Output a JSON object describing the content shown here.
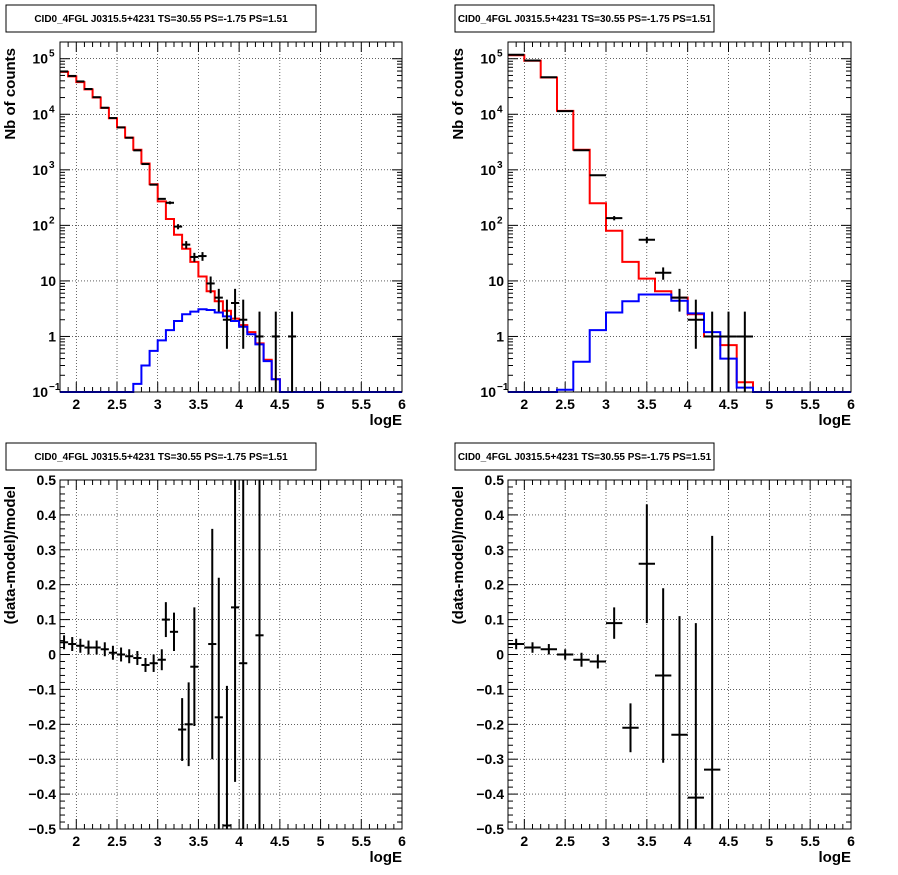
{
  "chart_data": [
    {
      "type": "step",
      "title": "CID0_4FGL J0315.5+4231 TS=30.55 PS=-1.75 PS=1.51",
      "xlabel": "logE",
      "ylabel": "Nb of counts",
      "xlim": [
        1.8,
        6
      ],
      "ylim": [
        0.1,
        200000
      ],
      "yscale": "log",
      "grid": true,
      "xticks": [
        "2",
        "2.5",
        "3",
        "3.5",
        "4",
        "4.5",
        "5",
        "5.5",
        "6"
      ],
      "yticks": [
        {
          "v": 0.1,
          "base": "10",
          "exp": "−1"
        },
        {
          "v": 1,
          "base": "1",
          "exp": ""
        },
        {
          "v": 10,
          "base": "10",
          "exp": ""
        },
        {
          "v": 100,
          "base": "10",
          "exp": "2"
        },
        {
          "v": 1000,
          "base": "10",
          "exp": "3"
        },
        {
          "v": 10000,
          "base": "10",
          "exp": "4"
        },
        {
          "v": 100000,
          "base": "10",
          "exp": "5"
        }
      ],
      "bin_edges": [
        1.8,
        1.9,
        2.0,
        2.1,
        2.2,
        2.3,
        2.4,
        2.5,
        2.6,
        2.7,
        2.8,
        2.9,
        3.0,
        3.1,
        3.2,
        3.3,
        3.4,
        3.5,
        3.6,
        3.7,
        3.8,
        3.9,
        4.0,
        4.1,
        4.2,
        4.3,
        4.4,
        4.5,
        4.6,
        4.7,
        4.8,
        4.9,
        5.0,
        5.1,
        5.2,
        5.3,
        5.4,
        5.5,
        5.6,
        5.7,
        5.8,
        5.9,
        6.0
      ],
      "series": [
        {
          "color": "#ff0000",
          "values": [
            58000,
            48000,
            38000,
            28000,
            20000,
            13000,
            8500,
            5800,
            3800,
            2300,
            1300,
            550,
            270,
            130,
            68,
            38,
            22,
            12,
            6.5,
            4.3,
            2.9,
            2.1,
            1.6,
            1.2,
            0.75,
            0.38,
            0.17,
            0.1,
            0.1,
            0.1,
            0.1,
            0.1,
            0.1,
            0.1,
            0.1,
            0.1,
            0.1,
            0.1,
            0.1,
            0.1,
            0.1,
            0.1
          ]
        },
        {
          "color": "#0000ff",
          "values": [
            0.1,
            0.1,
            0.1,
            0.1,
            0.1,
            0.1,
            0.1,
            0.1,
            0.1,
            0.14,
            0.3,
            0.55,
            0.85,
            1.3,
            1.9,
            2.5,
            2.8,
            3.1,
            3.0,
            2.7,
            2.3,
            1.9,
            1.5,
            1.1,
            0.72,
            0.36,
            0.17,
            0.1,
            0.1,
            0.1,
            0.1,
            0.1,
            0.1,
            0.1,
            0.1,
            0.1,
            0.1,
            0.1,
            0.1,
            0.1,
            0.1,
            0.1
          ]
        }
      ],
      "points": [
        {
          "x": 1.85,
          "y": 59000,
          "dx": 0.05,
          "lo": 0,
          "hi": 0
        },
        {
          "x": 1.95,
          "y": 49000,
          "dx": 0.05,
          "lo": 0,
          "hi": 0
        },
        {
          "x": 2.05,
          "y": 39000,
          "dx": 0.05,
          "lo": 0,
          "hi": 0
        },
        {
          "x": 2.15,
          "y": 28500,
          "dx": 0.05,
          "lo": 0,
          "hi": 0
        },
        {
          "x": 2.25,
          "y": 20300,
          "dx": 0.05,
          "lo": 0,
          "hi": 0
        },
        {
          "x": 2.35,
          "y": 13100,
          "dx": 0.05,
          "lo": 0,
          "hi": 0
        },
        {
          "x": 2.45,
          "y": 8550,
          "dx": 0.05,
          "lo": 0,
          "hi": 0
        },
        {
          "x": 2.55,
          "y": 5800,
          "dx": 0.05,
          "lo": 0,
          "hi": 0
        },
        {
          "x": 2.65,
          "y": 3780,
          "dx": 0.05,
          "lo": 0,
          "hi": 0
        },
        {
          "x": 2.75,
          "y": 2240,
          "dx": 0.05,
          "lo": 0,
          "hi": 0
        },
        {
          "x": 2.85,
          "y": 1270,
          "dx": 0.05,
          "lo": 0,
          "hi": 0
        },
        {
          "x": 2.95,
          "y": 540,
          "dx": 0.05,
          "lo": 0,
          "hi": 0
        },
        {
          "x": 3.05,
          "y": 300,
          "dx": 0.05,
          "lo": 0,
          "hi": 0
        },
        {
          "x": 3.15,
          "y": 255,
          "dx": 0.05,
          "lo": 15,
          "hi": 16
        },
        {
          "x": 3.25,
          "y": 95,
          "dx": 0.05,
          "lo": 10,
          "hi": 10
        },
        {
          "x": 3.35,
          "y": 45,
          "dx": 0.05,
          "lo": 7,
          "hi": 7
        },
        {
          "x": 3.45,
          "y": 27,
          "dx": 0.05,
          "lo": 5,
          "hi": 5
        },
        {
          "x": 3.55,
          "y": 28,
          "dx": 0.05,
          "lo": 5,
          "hi": 5
        },
        {
          "x": 3.65,
          "y": 9,
          "dx": 0.05,
          "lo": 3,
          "hi": 3
        },
        {
          "x": 3.75,
          "y": 5,
          "dx": 0.05,
          "lo": 2.2,
          "hi": 2.2
        },
        {
          "x": 3.85,
          "y": 2,
          "dx": 0.05,
          "lo": 1.4,
          "hi": 2.6
        },
        {
          "x": 3.95,
          "y": 4,
          "dx": 0.05,
          "lo": 2,
          "hi": 3.2
        },
        {
          "x": 4.05,
          "y": 2,
          "dx": 0.05,
          "lo": 1.4,
          "hi": 2.6
        },
        {
          "x": 4.25,
          "y": 1,
          "dx": 0.05,
          "lo": 0.9,
          "hi": 1.8
        },
        {
          "x": 4.45,
          "y": 1,
          "dx": 0.05,
          "lo": 0.9,
          "hi": 1.8
        },
        {
          "x": 4.65,
          "y": 1,
          "dx": 0.05,
          "lo": 0.9,
          "hi": 1.8
        }
      ]
    },
    {
      "type": "step",
      "title": "CID0_4FGL J0315.5+4231 TS=30.55 PS=-1.75 PS=1.51",
      "xlabel": "logE",
      "ylabel": "Nb of counts",
      "xlim": [
        1.8,
        6
      ],
      "ylim": [
        0.1,
        200000
      ],
      "yscale": "log",
      "grid": true,
      "xticks": [
        "2",
        "2.5",
        "3",
        "3.5",
        "4",
        "4.5",
        "5",
        "5.5",
        "6"
      ],
      "yticks": [
        {
          "v": 0.1,
          "base": "10",
          "exp": "−1"
        },
        {
          "v": 1,
          "base": "1",
          "exp": ""
        },
        {
          "v": 10,
          "base": "10",
          "exp": ""
        },
        {
          "v": 100,
          "base": "10",
          "exp": "2"
        },
        {
          "v": 1000,
          "base": "10",
          "exp": "3"
        },
        {
          "v": 10000,
          "base": "10",
          "exp": "4"
        },
        {
          "v": 100000,
          "base": "10",
          "exp": "5"
        }
      ],
      "bin_edges": [
        1.8,
        2.0,
        2.2,
        2.4,
        2.6,
        2.8,
        3.0,
        3.2,
        3.4,
        3.6,
        3.8,
        4.0,
        4.2,
        4.4,
        4.6,
        4.8,
        5.0,
        5.2,
        5.4,
        5.6,
        5.8,
        6.0
      ],
      "series": [
        {
          "color": "#ff0000",
          "values": [
            115000,
            92000,
            46000,
            11500,
            2300,
            250,
            80,
            22,
            11,
            6.5,
            5,
            2.5,
            1,
            0.7,
            0.15,
            0.1,
            0.1,
            0.1,
            0.1,
            0.1,
            0.1
          ]
        },
        {
          "color": "#0000ff",
          "values": [
            0.1,
            0.1,
            0.1,
            0.11,
            0.35,
            1.3,
            2.7,
            4.3,
            5.7,
            5.7,
            4.4,
            2.6,
            1.2,
            0.4,
            0.12,
            0.1,
            0.1,
            0.1,
            0.1,
            0.1,
            0.1
          ]
        }
      ],
      "points": [
        {
          "x": 1.9,
          "y": 118000,
          "dx": 0.1,
          "lo": 0,
          "hi": 0
        },
        {
          "x": 2.1,
          "y": 93000,
          "dx": 0.1,
          "lo": 0,
          "hi": 0
        },
        {
          "x": 2.3,
          "y": 46500,
          "dx": 0.1,
          "lo": 0,
          "hi": 0
        },
        {
          "x": 2.5,
          "y": 11400,
          "dx": 0.1,
          "lo": 0,
          "hi": 0
        },
        {
          "x": 2.7,
          "y": 2250,
          "dx": 0.1,
          "lo": 0,
          "hi": 0
        },
        {
          "x": 2.9,
          "y": 800,
          "dx": 0.1,
          "lo": 30,
          "hi": 30
        },
        {
          "x": 3.1,
          "y": 135,
          "dx": 0.1,
          "lo": 12,
          "hi": 12
        },
        {
          "x": 3.5,
          "y": 55,
          "dx": 0.1,
          "lo": 7,
          "hi": 7
        },
        {
          "x": 3.7,
          "y": 14,
          "dx": 0.1,
          "lo": 3.5,
          "hi": 3.5
        },
        {
          "x": 3.9,
          "y": 5,
          "dx": 0.1,
          "lo": 2.2,
          "hi": 2.2
        },
        {
          "x": 4.1,
          "y": 2,
          "dx": 0.1,
          "lo": 1.4,
          "hi": 2.6
        },
        {
          "x": 4.3,
          "y": 1,
          "dx": 0.1,
          "lo": 0.9,
          "hi": 1.8
        },
        {
          "x": 4.5,
          "y": 1,
          "dx": 0.1,
          "lo": 0.9,
          "hi": 1.8
        },
        {
          "x": 4.7,
          "y": 1,
          "dx": 0.1,
          "lo": 0.9,
          "hi": 1.8
        }
      ]
    },
    {
      "type": "scatter",
      "title": "CID0_4FGL J0315.5+4231 TS=30.55 PS=-1.75 PS=1.51",
      "xlabel": "logE",
      "ylabel": "(data-model)/model",
      "xlim": [
        1.8,
        6
      ],
      "ylim": [
        -0.5,
        0.5
      ],
      "yscale": "linear",
      "grid": true,
      "xticks": [
        "2",
        "2.5",
        "3",
        "3.5",
        "4",
        "4.5",
        "5",
        "5.5",
        "6"
      ],
      "yticks": [
        {
          "v": -0.5,
          "base": "−0.5",
          "exp": ""
        },
        {
          "v": -0.4,
          "base": "−0.4",
          "exp": ""
        },
        {
          "v": -0.3,
          "base": "−0.3",
          "exp": ""
        },
        {
          "v": -0.2,
          "base": "−0.2",
          "exp": ""
        },
        {
          "v": -0.1,
          "base": "−0.1",
          "exp": ""
        },
        {
          "v": 0,
          "base": "0",
          "exp": ""
        },
        {
          "v": 0.1,
          "base": "0.1",
          "exp": ""
        },
        {
          "v": 0.2,
          "base": "0.2",
          "exp": ""
        },
        {
          "v": 0.3,
          "base": "0.3",
          "exp": ""
        },
        {
          "v": 0.4,
          "base": "0.4",
          "exp": ""
        },
        {
          "v": 0.5,
          "base": "0.5",
          "exp": ""
        }
      ],
      "points": [
        {
          "x": 1.85,
          "y": 0.035,
          "dx": 0.05,
          "lo": 0.02,
          "hi": 0.02
        },
        {
          "x": 1.95,
          "y": 0.03,
          "dx": 0.05,
          "lo": 0.02,
          "hi": 0.02
        },
        {
          "x": 2.05,
          "y": 0.025,
          "dx": 0.05,
          "lo": 0.02,
          "hi": 0.02
        },
        {
          "x": 2.15,
          "y": 0.02,
          "dx": 0.05,
          "lo": 0.02,
          "hi": 0.02
        },
        {
          "x": 2.25,
          "y": 0.02,
          "dx": 0.05,
          "lo": 0.02,
          "hi": 0.02
        },
        {
          "x": 2.35,
          "y": 0.015,
          "dx": 0.05,
          "lo": 0.02,
          "hi": 0.02
        },
        {
          "x": 2.45,
          "y": 0.005,
          "dx": 0.05,
          "lo": 0.02,
          "hi": 0.02
        },
        {
          "x": 2.55,
          "y": 0.0,
          "dx": 0.05,
          "lo": 0.02,
          "hi": 0.02
        },
        {
          "x": 2.65,
          "y": -0.005,
          "dx": 0.05,
          "lo": 0.02,
          "hi": 0.02
        },
        {
          "x": 2.75,
          "y": -0.01,
          "dx": 0.05,
          "lo": 0.02,
          "hi": 0.02
        },
        {
          "x": 2.85,
          "y": -0.03,
          "dx": 0.05,
          "lo": 0.02,
          "hi": 0.02
        },
        {
          "x": 2.95,
          "y": -0.025,
          "dx": 0.05,
          "lo": 0.025,
          "hi": 0.025
        },
        {
          "x": 3.05,
          "y": -0.015,
          "dx": 0.05,
          "lo": 0.03,
          "hi": 0.03
        },
        {
          "x": 3.1,
          "y": 0.1,
          "dx": 0.05,
          "lo": 0.05,
          "hi": 0.05
        },
        {
          "x": 3.2,
          "y": 0.065,
          "dx": 0.05,
          "lo": 0.055,
          "hi": 0.055
        },
        {
          "x": 3.3,
          "y": -0.215,
          "dx": 0.05,
          "lo": 0.09,
          "hi": 0.09
        },
        {
          "x": 3.38,
          "y": -0.2,
          "dx": 0.05,
          "lo": 0.12,
          "hi": 0.12
        },
        {
          "x": 3.45,
          "y": -0.035,
          "dx": 0.05,
          "lo": 0.17,
          "hi": 0.17
        },
        {
          "x": 3.67,
          "y": 0.03,
          "dx": 0.05,
          "lo": 0.33,
          "hi": 0.33
        },
        {
          "x": 3.75,
          "y": -0.18,
          "dx": 0.05,
          "lo": 0.4,
          "hi": 0.4
        },
        {
          "x": 3.85,
          "y": -0.49,
          "dx": 0.05,
          "lo": 0.4,
          "hi": 0.4
        },
        {
          "x": 3.95,
          "y": 0.135,
          "dx": 0.05,
          "lo": 0.5,
          "hi": 0.5
        },
        {
          "x": 4.05,
          "y": -0.025,
          "dx": 0.05,
          "lo": 0.55,
          "hi": 0.55
        },
        {
          "x": 4.25,
          "y": 0.055,
          "dx": 0.05,
          "lo": 0.6,
          "hi": 0.6
        }
      ]
    },
    {
      "type": "scatter",
      "title": "CID0_4FGL J0315.5+4231 TS=30.55 PS=-1.75 PS=1.51",
      "xlabel": "logE",
      "ylabel": "(data-model)/model",
      "xlim": [
        1.8,
        6
      ],
      "ylim": [
        -0.5,
        0.5
      ],
      "yscale": "linear",
      "grid": true,
      "xticks": [
        "2",
        "2.5",
        "3",
        "3.5",
        "4",
        "4.5",
        "5",
        "5.5",
        "6"
      ],
      "yticks": [
        {
          "v": -0.5,
          "base": "−0.5",
          "exp": ""
        },
        {
          "v": -0.4,
          "base": "−0.4",
          "exp": ""
        },
        {
          "v": -0.3,
          "base": "−0.3",
          "exp": ""
        },
        {
          "v": -0.2,
          "base": "−0.2",
          "exp": ""
        },
        {
          "v": -0.1,
          "base": "−0.1",
          "exp": ""
        },
        {
          "v": 0,
          "base": "0",
          "exp": ""
        },
        {
          "v": 0.1,
          "base": "0.1",
          "exp": ""
        },
        {
          "v": 0.2,
          "base": "0.2",
          "exp": ""
        },
        {
          "v": 0.3,
          "base": "0.3",
          "exp": ""
        },
        {
          "v": 0.4,
          "base": "0.4",
          "exp": ""
        },
        {
          "v": 0.5,
          "base": "0.5",
          "exp": ""
        }
      ],
      "points": [
        {
          "x": 1.9,
          "y": 0.03,
          "dx": 0.1,
          "lo": 0.015,
          "hi": 0.015
        },
        {
          "x": 2.1,
          "y": 0.02,
          "dx": 0.1,
          "lo": 0.015,
          "hi": 0.015
        },
        {
          "x": 2.3,
          "y": 0.015,
          "dx": 0.1,
          "lo": 0.015,
          "hi": 0.015
        },
        {
          "x": 2.5,
          "y": 0.0,
          "dx": 0.1,
          "lo": 0.015,
          "hi": 0.015
        },
        {
          "x": 2.7,
          "y": -0.015,
          "dx": 0.1,
          "lo": 0.02,
          "hi": 0.02
        },
        {
          "x": 2.9,
          "y": -0.02,
          "dx": 0.1,
          "lo": 0.02,
          "hi": 0.02
        },
        {
          "x": 3.1,
          "y": 0.09,
          "dx": 0.1,
          "lo": 0.045,
          "hi": 0.045
        },
        {
          "x": 3.3,
          "y": -0.21,
          "dx": 0.1,
          "lo": 0.07,
          "hi": 0.07
        },
        {
          "x": 3.5,
          "y": 0.26,
          "dx": 0.1,
          "lo": 0.17,
          "hi": 0.17
        },
        {
          "x": 3.7,
          "y": -0.06,
          "dx": 0.1,
          "lo": 0.25,
          "hi": 0.25
        },
        {
          "x": 3.9,
          "y": -0.23,
          "dx": 0.1,
          "lo": 0.34,
          "hi": 0.34
        },
        {
          "x": 4.1,
          "y": -0.41,
          "dx": 0.1,
          "lo": 0.5,
          "hi": 0.5
        },
        {
          "x": 4.3,
          "y": -0.33,
          "dx": 0.1,
          "lo": 0.67,
          "hi": 0.67
        }
      ]
    }
  ]
}
